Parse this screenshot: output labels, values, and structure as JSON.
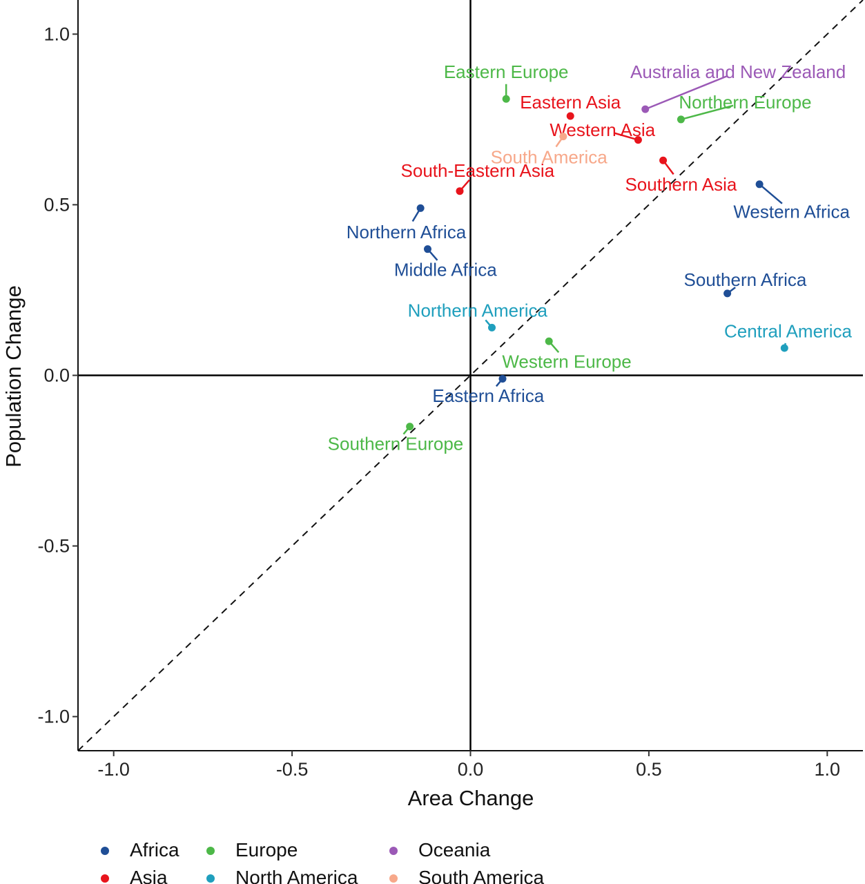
{
  "chart_data": {
    "type": "scatter",
    "xlabel": "Area Change",
    "ylabel": "Population Change",
    "xlim": [
      -1.1,
      1.1
    ],
    "ylim": [
      -1.1,
      1.1
    ],
    "x_ticks": [
      -1.0,
      -0.5,
      0.0,
      0.5,
      1.0
    ],
    "x_tick_labels": [
      "-1.0",
      "-0.5",
      "0.0",
      "0.5",
      "1.0"
    ],
    "y_ticks": [
      -1.0,
      -0.5,
      0.0,
      0.5,
      1.0
    ],
    "y_tick_labels": [
      "-1.0",
      "-0.5",
      "0.0",
      "0.5",
      "1.0"
    ],
    "reference_lines": [
      "x = 0",
      "y = 0",
      "y = x (dashed)"
    ],
    "grid": false,
    "legend_position": "bottom",
    "groups": [
      {
        "name": "Africa",
        "color": "#1f4e96"
      },
      {
        "name": "Asia",
        "color": "#e8141c"
      },
      {
        "name": "Europe",
        "color": "#4db848"
      },
      {
        "name": "North America",
        "color": "#1f9fbd"
      },
      {
        "name": "Oceania",
        "color": "#9b59b6"
      },
      {
        "name": "South America",
        "color": "#f7a88a"
      }
    ],
    "points": [
      {
        "label": "Eastern Europe",
        "group": "Europe",
        "x": 0.1,
        "y": 0.81,
        "anchor": "end",
        "label_dx": -0.0,
        "label_dy": 0.08
      },
      {
        "label": "Eastern Asia",
        "group": "Asia",
        "x": 0.28,
        "y": 0.76,
        "anchor": "middle",
        "label_dx": 0.0,
        "label_dy": 0.04
      },
      {
        "label": "Australia and New Zealand",
        "group": "Oceania",
        "x": 0.49,
        "y": 0.78,
        "anchor": "middle",
        "label_dx": 0.26,
        "label_dy": 0.11
      },
      {
        "label": "Northern Europe",
        "group": "Europe",
        "x": 0.59,
        "y": 0.75,
        "anchor": "middle",
        "label_dx": 0.18,
        "label_dy": 0.05
      },
      {
        "label": "Western Asia",
        "group": "Asia",
        "x": 0.47,
        "y": 0.69,
        "anchor": "middle",
        "label_dx": -0.1,
        "label_dy": 0.03
      },
      {
        "label": "South America",
        "group": "South America",
        "x": 0.26,
        "y": 0.7,
        "anchor": "middle",
        "label_dx": -0.04,
        "label_dy": -0.06
      },
      {
        "label": "Southern Asia",
        "group": "Asia",
        "x": 0.54,
        "y": 0.63,
        "anchor": "middle",
        "label_dx": 0.05,
        "label_dy": -0.07
      },
      {
        "label": "South-Eastern Asia",
        "group": "Asia",
        "x": -0.03,
        "y": 0.54,
        "anchor": "middle",
        "label_dx": 0.05,
        "label_dy": 0.06
      },
      {
        "label": "Western Africa",
        "group": "Africa",
        "x": 0.81,
        "y": 0.56,
        "anchor": "middle",
        "label_dx": 0.09,
        "label_dy": -0.08
      },
      {
        "label": "Northern Africa",
        "group": "Africa",
        "x": -0.14,
        "y": 0.49,
        "anchor": "middle",
        "label_dx": -0.04,
        "label_dy": -0.07
      },
      {
        "label": "Middle Africa",
        "group": "Africa",
        "x": -0.12,
        "y": 0.37,
        "anchor": "middle",
        "label_dx": 0.05,
        "label_dy": -0.06
      },
      {
        "label": "Southern Africa",
        "group": "Africa",
        "x": 0.72,
        "y": 0.24,
        "anchor": "middle",
        "label_dx": 0.05,
        "label_dy": 0.04
      },
      {
        "label": "Northern America",
        "group": "North America",
        "x": 0.06,
        "y": 0.14,
        "anchor": "middle",
        "label_dx": -0.04,
        "label_dy": 0.05
      },
      {
        "label": "Central America",
        "group": "North America",
        "x": 0.88,
        "y": 0.08,
        "anchor": "middle",
        "label_dx": 0.01,
        "label_dy": 0.05
      },
      {
        "label": "Western Europe",
        "group": "Europe",
        "x": 0.22,
        "y": 0.1,
        "anchor": "middle",
        "label_dx": 0.05,
        "label_dy": -0.06
      },
      {
        "label": "Eastern Africa",
        "group": "Africa",
        "x": 0.09,
        "y": -0.01,
        "anchor": "middle",
        "label_dx": -0.04,
        "label_dy": -0.05
      },
      {
        "label": "Southern Europe",
        "group": "Europe",
        "x": -0.17,
        "y": -0.15,
        "anchor": "middle",
        "label_dx": -0.04,
        "label_dy": -0.05
      }
    ]
  }
}
